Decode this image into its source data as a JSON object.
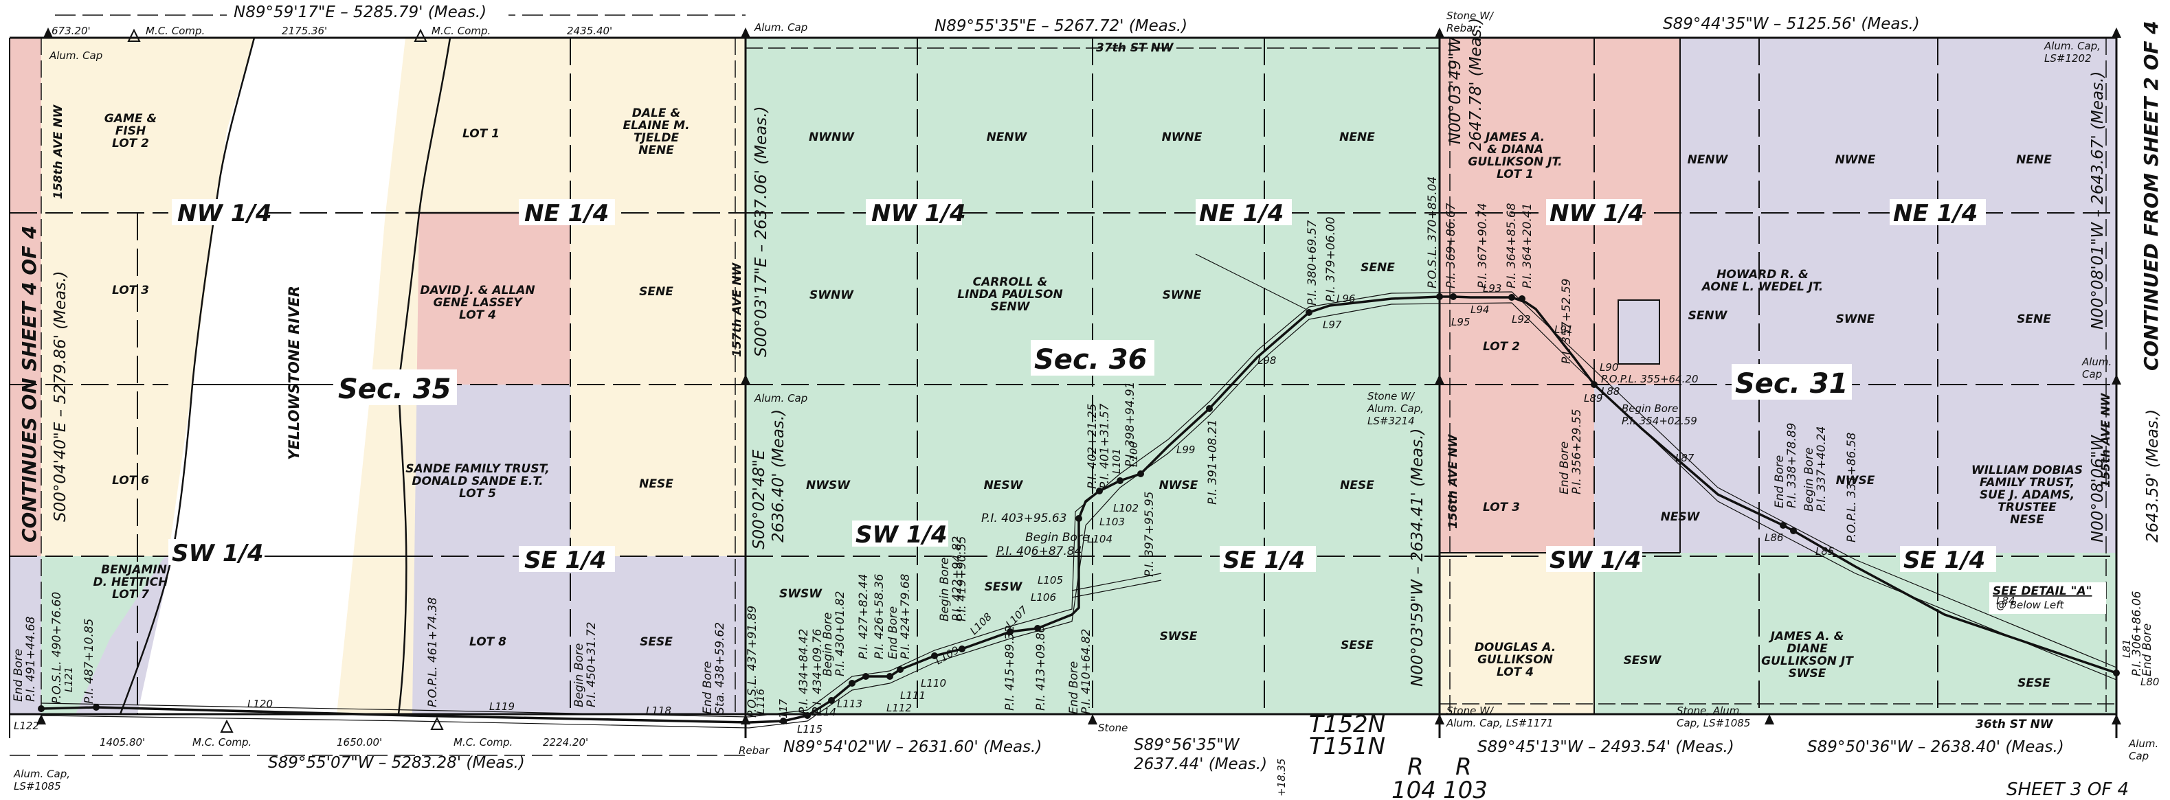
{
  "colors": {
    "green": "#cbe8d6",
    "yellow": "#fcf3dc",
    "pink": "#f1c7c2",
    "purple": "#d8d5e6",
    "line": "#111111"
  },
  "bearings": {
    "n35": "N89°59'17\"E – 5285.79' (Meas.)",
    "n36": "N89°55'35\"E – 5267.72' (Meas.)",
    "n31": "S89°44'35\"W – 5125.56' (Meas.)",
    "s35": "S89°55'07\"W – 5283.28' (Meas.)",
    "s36w": "N89°54'02\"W – 2631.60' (Meas.)",
    "s36e_a": "S89°56'35\"W",
    "s36e_b": "2637.44' (Meas.)",
    "s31w": "S89°45'13\"W – 2493.54' (Meas.)",
    "s31e": "S89°50'36\"W – 2638.40' (Meas.)",
    "w35": "S00°04'40\"E – 5279.86' (Meas.)",
    "m36a": "S00°03'17\"E – 2637.06' (Meas.)",
    "m36b_1": "S00°02'48\"E",
    "m36b_2": "2636.40' (Meas.)",
    "e36n_1": "N00°03'49\"W",
    "e36n_2": "2647.78' (Meas.)",
    "e36s": "N00°03'59\"W – 2634.41' (Meas.)",
    "e31n": "N00°08'01\"W – 2643.67' (Meas.)",
    "e31s_1": "N00°08'06\"W",
    "e31s_2": "2643.59' (Meas.)"
  },
  "dims": {
    "d1": "673.20'",
    "d2": "2175.36'",
    "d3": "2435.40'",
    "d4": "1405.80'",
    "d5": "1650.00'",
    "d6": "2224.20'"
  },
  "sections": {
    "s35": "Sec. 35",
    "s36": "Sec. 36",
    "s31": "Sec. 31"
  },
  "quarters": {
    "nw35": "NW 1/4",
    "ne35": "NE 1/4",
    "sw35": "SW 1/4",
    "se35": "SE 1/4",
    "nw36": "NW 1/4",
    "ne36": "NE 1/4",
    "sw36": "SW 1/4",
    "se36": "SE 1/4",
    "nw31": "NW 1/4",
    "ne31": "NE 1/4",
    "sw31": "SW 1/4",
    "se31": "SE 1/4"
  },
  "qq": {
    "nwnw": "NWNW",
    "nenw": "NENW",
    "nwne": "NWNE",
    "nene": "NENE",
    "swnw": "SWNW",
    "swne": "SWNE",
    "sene": "SENE",
    "nwsw": "NWSW",
    "nesw": "NESW",
    "nwse": "NWSE",
    "nese": "NESE",
    "swsw": "SWSW",
    "sesw": "SESW",
    "swse": "SWSE",
    "sese": "SESE",
    "sene35": "SENE",
    "nese35": "NESE",
    "sese35": "SESE",
    "nenw31": "NENW",
    "nwne31": "NWNE",
    "nene31": "NENE",
    "senw31": "SENW",
    "swne31": "SWNE",
    "sene31": "SENE",
    "nesw31": "NESW",
    "nwse31": "NWSE",
    "sesw31": "SESW",
    "sese31": "SESE"
  },
  "lots": {
    "gf_1": "GAME &",
    "gf_2": "FISH",
    "gf_3": "LOT 2",
    "lot3": "LOT 3",
    "lot6": "LOT 6",
    "bh_1": "BENJAMIN",
    "bh_2": "D. HETTICH",
    "bh_3": "LOT 7",
    "lot1": "LOT 1",
    "dj_1": "DALE &",
    "dj_2": "ELAINE M.",
    "dj_3": "TJELDE",
    "dj_4": "NENE",
    "dl_1": "DAVID J. & ALLAN",
    "dl_2": "GENE LASSEY",
    "dl_3": "LOT 4",
    "sf_1": "SANDE FAMILY TRUST,",
    "sf_2": "DONALD SANDE E.T.",
    "sf_3": "LOT 5",
    "lot8": "LOT 8",
    "cp_1": "CARROLL &",
    "cp_2": "LINDA PAULSON",
    "cp_3": "SENW",
    "jg_1": "JAMES A.",
    "jg_2": "& DIANA",
    "jg_3": "GULLIKSON JT.",
    "jg_4": "LOT 1",
    "lot2_31": "LOT 2",
    "lot3_31": "LOT 3",
    "hw_1": "HOWARD R. &",
    "hw_2": "AONE L. WEDEL JT.",
    "dg_1": "DOUGLAS A.",
    "dg_2": "GULLIKSON",
    "dg_3": "LOT 4",
    "jd_1": "JAMES A. &",
    "jd_2": "DIANE",
    "jd_3": "GULLIKSON JT",
    "jd_4": "SWSE",
    "wd_1": "WILLIAM DOBIAS",
    "wd_2": "FAMILY TRUST,",
    "wd_3": "SUE J. ADAMS,",
    "wd_4": "TRUSTEE",
    "wd_5": "NESE"
  },
  "roads": {
    "r158": "158th AVE NW",
    "r157": "157th AVE NW",
    "r156": "156th AVE NW",
    "r155": "155th AVE NW",
    "st37": "37th ST NW",
    "st36": "36th ST NW",
    "river": "YELLOWSTONE RIVER"
  },
  "monuments": {
    "alum_cap": "Alum. Cap",
    "mc_comp1": "M.C. Comp.",
    "mc_comp2": "M.C. Comp.",
    "mc_comp3": "M.C. Comp.",
    "mc_comp4": "M.C. Comp.",
    "alum_cap_36": "Alum. Cap",
    "alum_cap_mid": "Alum. Cap",
    "stone_rebar_1": "Stone W/",
    "stone_rebar_2": "Rebar",
    "alum_ls1202_1": "Alum. Cap,",
    "alum_ls1202_2": "LS#1202",
    "alum_cap_e_1": "Alum.",
    "alum_cap_e_2": "Cap",
    "stone_ls3214_1": "Stone W/",
    "stone_ls3214_2": "Alum. Cap,",
    "stone_ls3214_3": "LS#3214",
    "rebar": "Rebar",
    "stone": "Stone",
    "stone_ls1171_1": "Stone W/",
    "stone_ls1171_2": "Alum. Cap, LS#1171",
    "stone_ls1085_1": "Stone, Alum.",
    "stone_ls1085_2": "Cap, LS#1085",
    "alum_ls1085_1": "Alum. Cap,",
    "alum_ls1085_2": "LS#1085",
    "alum_cap_se_1": "Alum.",
    "alum_cap_se_2": "Cap"
  },
  "side_notes": {
    "left": "CONTINUES ON SHEET 4 OF 4",
    "right": "CONTINUED FROM SHEET 2 OF 4"
  },
  "township": {
    "t152": "T152N",
    "t151": "T151N",
    "r104a": "R",
    "r104b": "104",
    "r103a": "R",
    "r103b": "103",
    "sheet": "SHEET 3 OF 4",
    "sta": "+18.35"
  },
  "detail": {
    "a": "SEE DETAIL \"A\"",
    "b": "@ Below Left"
  },
  "lines": {
    "L80": "L80",
    "L81": "L81",
    "L84": "L84",
    "L85": "L85",
    "L86": "L86",
    "L87": "L87",
    "L88": "L88",
    "L89": "L89",
    "L90": "L90",
    "L91": "L91",
    "L92": "L92",
    "L93": "L93",
    "L94": "L94",
    "L95": "L95",
    "L96": "L96",
    "L97": "L97",
    "L98": "L98",
    "L99": "L99",
    "L100": "L100",
    "L101": "L101",
    "L102": "L102",
    "L103": "L103",
    "L104": "L104",
    "L105": "L105",
    "L106": "L106",
    "L107": "L107",
    "L108": "L108",
    "L109": "L109",
    "L110": "L110",
    "L111": "L111",
    "L112": "L112",
    "L113": "L113",
    "L114": "L114",
    "L115": "L115",
    "L116": "L116",
    "L117": "L117",
    "L118": "L118",
    "L119": "L119",
    "L120": "L120",
    "L121": "L121",
    "L122": "L122"
  },
  "pi": {
    "p370": "P.O.S.L. 370+85.04",
    "p369": "P.I. 369+86.67",
    "p367": "P.I. 367+90.74",
    "p364a": "P.I. 364+85.68",
    "p364b": "P.I. 364+20.41",
    "p357": "P.I. 357+52.59",
    "pol355": "P.O.P.L. 355+64.20",
    "bb354_1": "Begin Bore",
    "bb354_2": "P.I. 354+02.59",
    "eb356_1": "End Bore",
    "eb356_2": "P.I. 356+29.55",
    "eb338_1": "End Bore",
    "eb338_2": "P.I. 338+78.89",
    "bb337_1": "Begin Bore",
    "bb337_2": "P.I. 337+40.24",
    "pol331": "P.O.P.L. 331+86.58",
    "eb306_1": "End Bore",
    "eb306_2": "P.I. 306+86.06",
    "p380": "P.I. 380+69.57",
    "p379": "P.I. 379+06.00",
    "p391": "P.I. 391+08.21",
    "p402": "P.I. 402+21.25",
    "p401": "P.I. 401+31.57",
    "p398": "P.I. 398+94.91",
    "p397": "P.I. 397+95.95",
    "p403": "P.I. 403+95.63",
    "bb406_1": "Begin Bore",
    "bb406_2": "P.I. 406+87.84",
    "eb410_1": "End Bore",
    "eb410_2": "P.I. 410+64.82",
    "p413": "P.I. 413+09.80",
    "p415": "P.I. 415+89.32",
    "p419": "P.I. 419+90.55",
    "bb422_1": "Begin Bore",
    "bb422_2": "P.I. 422+94.82",
    "eb424_1": "End Bore",
    "eb424_2": "P.I. 424+79.68",
    "p426": "P.I. 426+58.36",
    "p427": "P.I. 427+82.44",
    "p430_1": "Begin Bore",
    "p430_2": "P.I. 430+01.82",
    "p434a": "P.I. 434+09.76",
    "p434b": "P.I. 434+84.42",
    "pos437": "P.O.S.L. 437+91.89",
    "eb438_1": "End Bore",
    "eb438_2": "Sta. 438+59.62",
    "bb450_1": "Begin Bore",
    "bb450_2": "P.I. 450+31.72",
    "pol461": "P.O.P.L. 461+74.38",
    "pi487": "P.I. 487+10.85",
    "posl490": "P.O.S.L. 490+76.60",
    "eb491_1": "End Bore",
    "eb491_2": "P.I. 491+44.68"
  }
}
